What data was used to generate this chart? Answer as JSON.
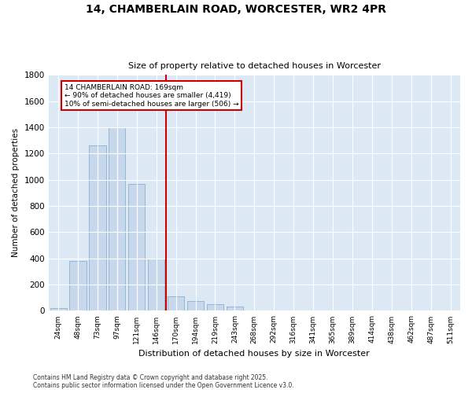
{
  "title": "14, CHAMBERLAIN ROAD, WORCESTER, WR2 4PR",
  "subtitle": "Size of property relative to detached houses in Worcester",
  "xlabel": "Distribution of detached houses by size in Worcester",
  "ylabel": "Number of detached properties",
  "bar_color": "#c8d8ec",
  "bar_edgecolor": "#8ab0cc",
  "background_color": "#dce8f4",
  "grid_color": "#ffffff",
  "annotation_line_color": "#cc0000",
  "annotation_box_text": "14 CHAMBERLAIN ROAD: 169sqm\n← 90% of detached houses are smaller (4,419)\n10% of semi-detached houses are larger (506) →",
  "footer_line1": "Contains HM Land Registry data © Crown copyright and database right 2025.",
  "footer_line2": "Contains public sector information licensed under the Open Government Licence v3.0.",
  "bin_labels": [
    "24sqm",
    "48sqm",
    "73sqm",
    "97sqm",
    "121sqm",
    "146sqm",
    "170sqm",
    "194sqm",
    "219sqm",
    "243sqm",
    "268sqm",
    "292sqm",
    "316sqm",
    "341sqm",
    "365sqm",
    "389sqm",
    "414sqm",
    "438sqm",
    "462sqm",
    "487sqm",
    "511sqm"
  ],
  "bar_values": [
    18,
    380,
    1260,
    1400,
    970,
    400,
    110,
    75,
    50,
    30,
    5,
    0,
    0,
    0,
    0,
    0,
    0,
    0,
    0,
    0,
    0
  ],
  "ylim": [
    0,
    1800
  ],
  "yticks": [
    0,
    200,
    400,
    600,
    800,
    1000,
    1200,
    1400,
    1600,
    1800
  ]
}
